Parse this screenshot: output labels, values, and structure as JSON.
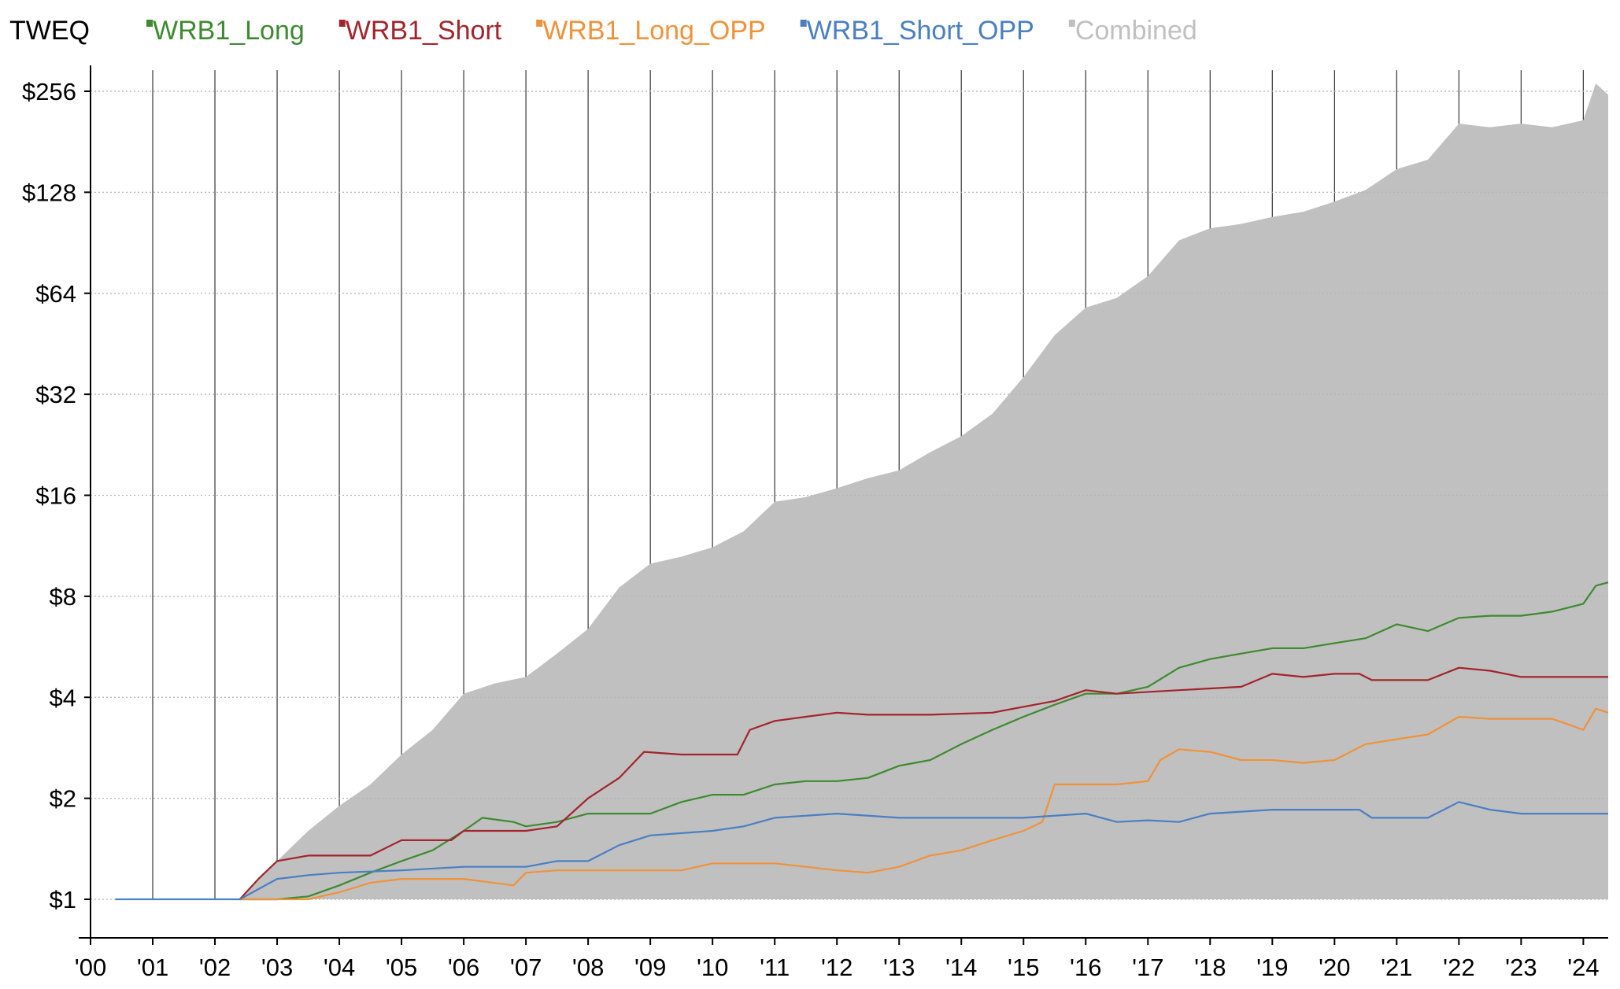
{
  "chart_data": {
    "type": "line",
    "title": "TWEQ",
    "xlabel": "",
    "ylabel": "",
    "y_scale": "log2",
    "ylim": [
      1,
      296
    ],
    "xlim": [
      2000,
      2024.4
    ],
    "grid": "horizontal dotted, vertical yearly lines",
    "legend_placement": "top",
    "x_ticks": [
      {
        "value": 2000,
        "label": "'00"
      },
      {
        "value": 2001,
        "label": "'01"
      },
      {
        "value": 2002,
        "label": "'02"
      },
      {
        "value": 2003,
        "label": "'03"
      },
      {
        "value": 2004,
        "label": "'04"
      },
      {
        "value": 2005,
        "label": "'05"
      },
      {
        "value": 2006,
        "label": "'06"
      },
      {
        "value": 2007,
        "label": "'07"
      },
      {
        "value": 2008,
        "label": "'08"
      },
      {
        "value": 2009,
        "label": "'09"
      },
      {
        "value": 2010,
        "label": "'10"
      },
      {
        "value": 2011,
        "label": "'11"
      },
      {
        "value": 2012,
        "label": "'12"
      },
      {
        "value": 2013,
        "label": "'13"
      },
      {
        "value": 2014,
        "label": "'14"
      },
      {
        "value": 2015,
        "label": "'15"
      },
      {
        "value": 2016,
        "label": "'16"
      },
      {
        "value": 2017,
        "label": "'17"
      },
      {
        "value": 2018,
        "label": "'18"
      },
      {
        "value": 2019,
        "label": "'19"
      },
      {
        "value": 2020,
        "label": "'20"
      },
      {
        "value": 2021,
        "label": "'21"
      },
      {
        "value": 2022,
        "label": "'22"
      },
      {
        "value": 2023,
        "label": "'23"
      },
      {
        "value": 2024,
        "label": "'24"
      }
    ],
    "y_ticks": [
      {
        "value": 1,
        "label": "$1"
      },
      {
        "value": 2,
        "label": "$2"
      },
      {
        "value": 4,
        "label": "$4"
      },
      {
        "value": 8,
        "label": "$8"
      },
      {
        "value": 16,
        "label": "$16"
      },
      {
        "value": 32,
        "label": "$32"
      },
      {
        "value": 64,
        "label": "$64"
      },
      {
        "value": 128,
        "label": "$128"
      },
      {
        "value": 256,
        "label": "$256"
      }
    ],
    "series": [
      {
        "name": "Combined",
        "color": "#c0c0c0",
        "style": "area",
        "x": [
          2002.4,
          2002.6,
          2003.0,
          2003.5,
          2004.0,
          2004.5,
          2005.0,
          2005.5,
          2006.0,
          2006.5,
          2007.0,
          2007.5,
          2008.0,
          2008.5,
          2009.0,
          2009.5,
          2010.0,
          2010.5,
          2011.0,
          2011.5,
          2012.0,
          2012.5,
          2013.0,
          2013.5,
          2014.0,
          2014.5,
          2015.0,
          2015.5,
          2016.0,
          2016.5,
          2017.0,
          2017.5,
          2018.0,
          2018.5,
          2019.0,
          2019.5,
          2020.0,
          2020.5,
          2021.0,
          2021.5,
          2022.0,
          2022.5,
          2023.0,
          2023.5,
          2024.0,
          2024.2,
          2024.4
        ],
        "y": [
          1.0,
          1.1,
          1.3,
          1.6,
          1.9,
          2.2,
          2.7,
          3.2,
          4.1,
          4.4,
          4.6,
          5.4,
          6.4,
          8.5,
          10.0,
          10.5,
          11.2,
          12.5,
          15.3,
          15.8,
          16.8,
          18.0,
          19.0,
          21.5,
          24.0,
          28.0,
          36.0,
          48.0,
          58.0,
          62.0,
          72.0,
          92.0,
          100.0,
          103.0,
          108.0,
          112.0,
          120.0,
          130.0,
          150.0,
          160.0,
          205.0,
          200.0,
          205.0,
          200.0,
          210.0,
          270.0,
          250.0
        ]
      },
      {
        "name": "WRB1_Long",
        "color": "#3e8a30",
        "style": "line",
        "x": [
          2002.4,
          2003.0,
          2003.5,
          2004.0,
          2004.5,
          2005.0,
          2005.5,
          2006.0,
          2006.3,
          2006.8,
          2007.0,
          2007.5,
          2008.0,
          2009.0,
          2009.5,
          2010.0,
          2010.5,
          2011.0,
          2011.5,
          2012.0,
          2012.5,
          2013.0,
          2013.5,
          2014.0,
          2014.5,
          2015.0,
          2015.5,
          2016.0,
          2016.5,
          2017.0,
          2017.5,
          2018.0,
          2018.5,
          2019.0,
          2019.5,
          2020.0,
          2020.5,
          2021.0,
          2021.5,
          2022.0,
          2022.5,
          2023.0,
          2023.5,
          2024.0,
          2024.2,
          2024.4
        ],
        "y": [
          1.0,
          1.0,
          1.02,
          1.1,
          1.2,
          1.3,
          1.4,
          1.6,
          1.75,
          1.7,
          1.65,
          1.7,
          1.8,
          1.8,
          1.95,
          2.05,
          2.05,
          2.2,
          2.25,
          2.25,
          2.3,
          2.5,
          2.6,
          2.9,
          3.2,
          3.5,
          3.8,
          4.1,
          4.1,
          4.3,
          4.9,
          5.2,
          5.4,
          5.6,
          5.6,
          5.8,
          6.0,
          6.6,
          6.3,
          6.9,
          7.0,
          7.0,
          7.2,
          7.6,
          8.6,
          8.8
        ]
      },
      {
        "name": "WRB1_Short",
        "color": "#a3242c",
        "style": "line",
        "x": [
          2002.4,
          2002.7,
          2003.0,
          2003.5,
          2004.5,
          2005.0,
          2005.8,
          2006.0,
          2007.0,
          2007.5,
          2008.0,
          2008.5,
          2008.9,
          2009.5,
          2010.0,
          2010.4,
          2010.6,
          2011.0,
          2011.5,
          2012.0,
          2012.5,
          2013.5,
          2014.5,
          2015.5,
          2016.0,
          2016.5,
          2017.5,
          2018.5,
          2019.0,
          2019.5,
          2020.0,
          2020.4,
          2020.6,
          2021.5,
          2022.0,
          2022.5,
          2023.0,
          2024.4
        ],
        "y": [
          1.0,
          1.15,
          1.3,
          1.35,
          1.35,
          1.5,
          1.5,
          1.6,
          1.6,
          1.65,
          2.0,
          2.3,
          2.75,
          2.7,
          2.7,
          2.7,
          3.2,
          3.4,
          3.5,
          3.6,
          3.55,
          3.55,
          3.6,
          3.9,
          4.2,
          4.1,
          4.2,
          4.3,
          4.7,
          4.6,
          4.7,
          4.7,
          4.5,
          4.5,
          4.9,
          4.8,
          4.6,
          4.6
        ]
      },
      {
        "name": "WRB1_Long_OPP",
        "color": "#f0923a",
        "style": "line",
        "x": [
          2002.4,
          2003.5,
          2004.0,
          2004.5,
          2005.0,
          2006.0,
          2006.8,
          2007.0,
          2007.5,
          2008.5,
          2009.5,
          2010.0,
          2010.5,
          2011.0,
          2011.5,
          2012.0,
          2012.5,
          2013.0,
          2013.5,
          2014.0,
          2014.5,
          2015.0,
          2015.3,
          2015.5,
          2016.0,
          2016.5,
          2017.0,
          2017.2,
          2017.5,
          2018.0,
          2018.5,
          2019.0,
          2019.5,
          2020.0,
          2020.5,
          2021.0,
          2021.5,
          2022.0,
          2022.5,
          2023.0,
          2023.5,
          2023.8,
          2024.0,
          2024.2,
          2024.4
        ],
        "y": [
          1.0,
          1.0,
          1.05,
          1.12,
          1.15,
          1.15,
          1.1,
          1.2,
          1.22,
          1.22,
          1.22,
          1.28,
          1.28,
          1.28,
          1.25,
          1.22,
          1.2,
          1.25,
          1.35,
          1.4,
          1.5,
          1.6,
          1.7,
          2.2,
          2.2,
          2.2,
          2.25,
          2.6,
          2.8,
          2.75,
          2.6,
          2.6,
          2.55,
          2.6,
          2.9,
          3.0,
          3.1,
          3.5,
          3.45,
          3.45,
          3.45,
          3.3,
          3.2,
          3.7,
          3.6
        ]
      },
      {
        "name": "WRB1_Short_OPP",
        "color": "#4a7fc4",
        "style": "line",
        "x": [
          2000.4,
          2002.4,
          2003.0,
          2003.5,
          2004.0,
          2005.0,
          2006.0,
          2007.0,
          2007.5,
          2008.0,
          2008.5,
          2009.0,
          2010.0,
          2010.5,
          2011.0,
          2012.0,
          2013.0,
          2014.0,
          2015.0,
          2016.0,
          2016.5,
          2017.0,
          2017.5,
          2018.0,
          2019.0,
          2019.5,
          2020.0,
          2020.4,
          2020.6,
          2021.5,
          2022.0,
          2022.5,
          2023.0,
          2024.4
        ],
        "y": [
          1.0,
          1.0,
          1.15,
          1.18,
          1.2,
          1.22,
          1.25,
          1.25,
          1.3,
          1.3,
          1.45,
          1.55,
          1.6,
          1.65,
          1.75,
          1.8,
          1.75,
          1.75,
          1.75,
          1.8,
          1.7,
          1.72,
          1.7,
          1.8,
          1.85,
          1.85,
          1.85,
          1.85,
          1.75,
          1.75,
          1.95,
          1.85,
          1.8,
          1.8
        ]
      }
    ]
  }
}
